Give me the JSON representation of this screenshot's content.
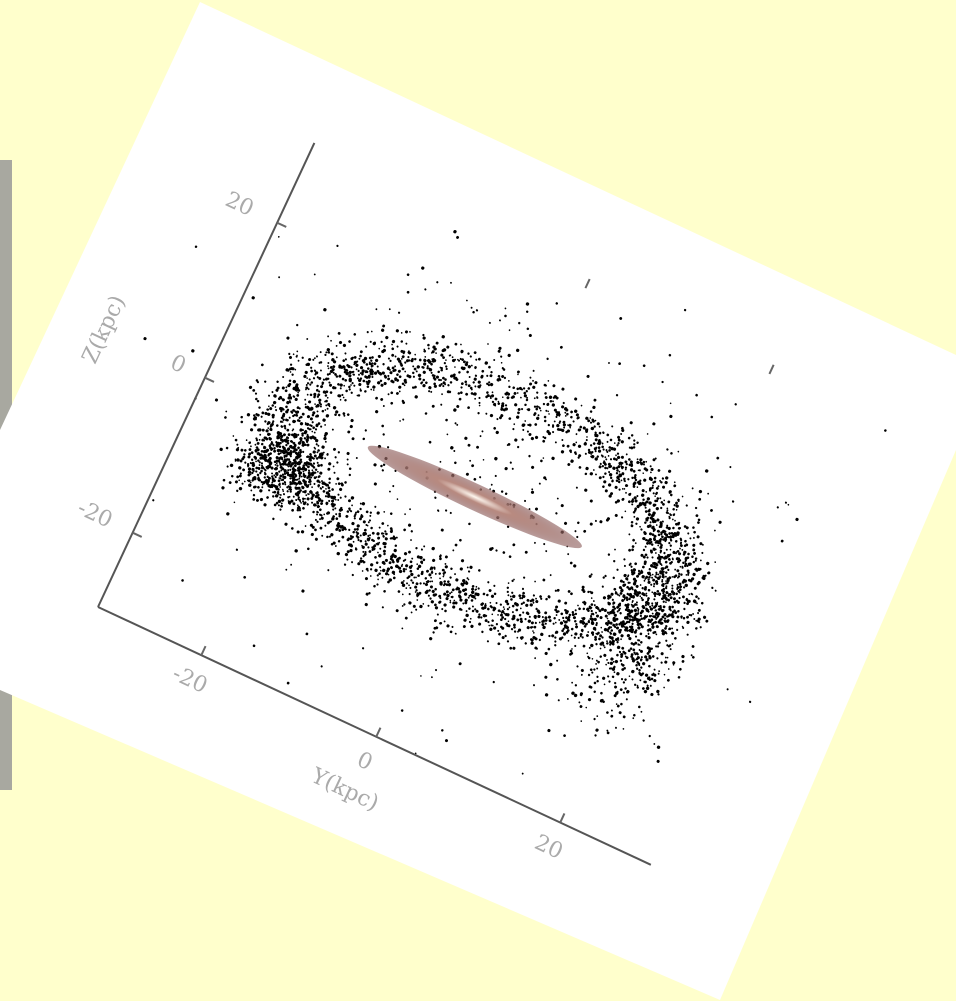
{
  "figure": {
    "z_axis": {
      "label": "Z(kpc)",
      "ticks": [
        "20",
        "0",
        "-20"
      ]
    },
    "y_axis": {
      "label": "Y(kpc)",
      "ticks": [
        "-20",
        "0",
        "20"
      ]
    }
  }
}
